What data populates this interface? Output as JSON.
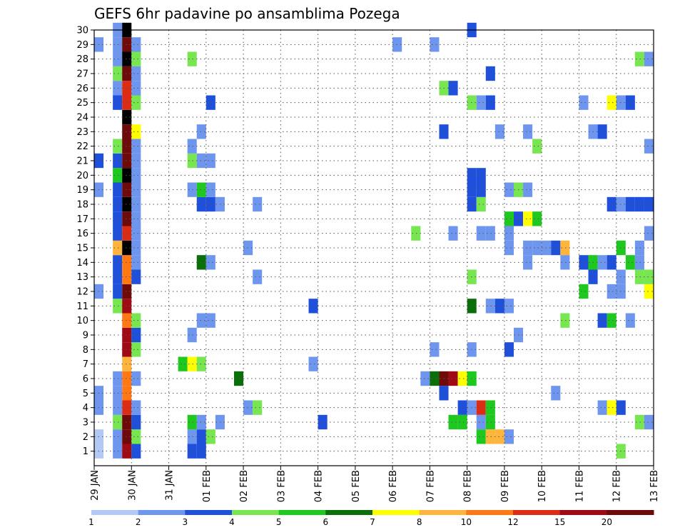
{
  "chart_data": {
    "type": "heatmap",
    "title": "GEFS 6hr padavine po ansamblima Pozega",
    "xlabel": "",
    "ylabel": "",
    "x_ticks": [
      "29 JAN",
      "30 JAN",
      "31 JAN",
      "01 FEB",
      "02 FEB",
      "03 FEB",
      "04 FEB",
      "05 FEB",
      "06 FEB",
      "07 FEB",
      "08 FEB",
      "09 FEB",
      "10 FEB",
      "11 FEB",
      "12 FEB",
      "13 FEB"
    ],
    "y_ticks": [
      "1",
      "2",
      "3",
      "4",
      "5",
      "6",
      "7",
      "8",
      "9",
      "10",
      "11",
      "12",
      "13",
      "14",
      "15",
      "16",
      "17",
      "18",
      "19",
      "20",
      "21",
      "22",
      "23",
      "24",
      "25",
      "26",
      "27",
      "28",
      "29",
      "30"
    ],
    "xlim": [
      0,
      15
    ],
    "ylim": [
      0,
      30
    ],
    "grid": true,
    "colorbar": {
      "labels": [
        "1",
        "2",
        "3",
        "4",
        "5",
        "6",
        "7",
        "8",
        "10",
        "12",
        "15",
        "20"
      ],
      "colors": [
        "#b4c8f5",
        "#6e96ee",
        "#1e50dc",
        "#78e650",
        "#1ec81e",
        "#0a6e0a",
        "#ffff00",
        "#ffb43c",
        "#ff7814",
        "#dc2d14",
        "#a00a14",
        "#6e0a0a"
      ]
    },
    "cells": [
      {
        "t": 0.0,
        "m": 1,
        "v": 0
      },
      {
        "t": 0.0,
        "m": 2,
        "v": 0
      },
      {
        "t": 0.0,
        "m": 4,
        "v": 1
      },
      {
        "t": 0.0,
        "m": 5,
        "v": 1
      },
      {
        "t": 0.0,
        "m": 12,
        "v": 1
      },
      {
        "t": 0.0,
        "m": 19,
        "v": 1
      },
      {
        "t": 0.0,
        "m": 21,
        "v": 2
      },
      {
        "t": 0.0,
        "m": 29,
        "v": 1
      },
      {
        "t": 0.5,
        "m": 1,
        "v": 1
      },
      {
        "t": 0.5,
        "m": 2,
        "v": 1
      },
      {
        "t": 0.5,
        "m": 3,
        "v": 3
      },
      {
        "t": 0.5,
        "m": 4,
        "v": 1
      },
      {
        "t": 0.5,
        "m": 5,
        "v": 1
      },
      {
        "t": 0.5,
        "m": 6,
        "v": 1
      },
      {
        "t": 0.5,
        "m": 11,
        "v": 3
      },
      {
        "t": 0.5,
        "m": 12,
        "v": 2
      },
      {
        "t": 0.5,
        "m": 13,
        "v": 2
      },
      {
        "t": 0.5,
        "m": 14,
        "v": 2
      },
      {
        "t": 0.5,
        "m": 15,
        "v": 7
      },
      {
        "t": 0.5,
        "m": 16,
        "v": 2
      },
      {
        "t": 0.5,
        "m": 17,
        "v": 2
      },
      {
        "t": 0.5,
        "m": 18,
        "v": 2
      },
      {
        "t": 0.5,
        "m": 19,
        "v": 2
      },
      {
        "t": 0.5,
        "m": 20,
        "v": 4
      },
      {
        "t": 0.5,
        "m": 21,
        "v": 2
      },
      {
        "t": 0.5,
        "m": 22,
        "v": 3
      },
      {
        "t": 0.5,
        "m": 25,
        "v": 2
      },
      {
        "t": 0.5,
        "m": 26,
        "v": 1
      },
      {
        "t": 0.5,
        "m": 27,
        "v": 3
      },
      {
        "t": 0.5,
        "m": 28,
        "v": 1
      },
      {
        "t": 0.5,
        "m": 29,
        "v": 1
      },
      {
        "t": 0.5,
        "m": 30,
        "v": 1
      },
      {
        "t": 0.75,
        "m": 1,
        "v": 10
      },
      {
        "t": 0.75,
        "m": 2,
        "v": 11
      },
      {
        "t": 0.75,
        "m": 3,
        "v": 11
      },
      {
        "t": 0.75,
        "m": 4,
        "v": 9
      },
      {
        "t": 0.75,
        "m": 5,
        "v": 8
      },
      {
        "t": 0.75,
        "m": 6,
        "v": 8
      },
      {
        "t": 0.75,
        "m": 7,
        "v": 7
      },
      {
        "t": 0.75,
        "m": 8,
        "v": 10
      },
      {
        "t": 0.75,
        "m": 9,
        "v": 10
      },
      {
        "t": 0.75,
        "m": 10,
        "v": 8
      },
      {
        "t": 0.75,
        "m": 11,
        "v": 10
      },
      {
        "t": 0.75,
        "m": 12,
        "v": 11
      },
      {
        "t": 0.75,
        "m": 13,
        "v": 8
      },
      {
        "t": 0.75,
        "m": 14,
        "v": 8
      },
      {
        "t": 0.75,
        "m": 15,
        "v": 12
      },
      {
        "t": 0.75,
        "m": 16,
        "v": 9
      },
      {
        "t": 0.75,
        "m": 17,
        "v": 11
      },
      {
        "t": 0.75,
        "m": 18,
        "v": 12
      },
      {
        "t": 0.75,
        "m": 19,
        "v": 11
      },
      {
        "t": 0.75,
        "m": 20,
        "v": 12
      },
      {
        "t": 0.75,
        "m": 21,
        "v": 11
      },
      {
        "t": 0.75,
        "m": 22,
        "v": 11
      },
      {
        "t": 0.75,
        "m": 23,
        "v": 11
      },
      {
        "t": 0.75,
        "m": 24,
        "v": 12
      },
      {
        "t": 0.75,
        "m": 25,
        "v": 9
      },
      {
        "t": 0.75,
        "m": 26,
        "v": 9
      },
      {
        "t": 0.75,
        "m": 27,
        "v": 11
      },
      {
        "t": 0.75,
        "m": 28,
        "v": 12
      },
      {
        "t": 0.75,
        "m": 29,
        "v": 11
      },
      {
        "t": 0.75,
        "m": 30,
        "v": 12
      },
      {
        "t": 1.0,
        "m": 1,
        "v": 2
      },
      {
        "t": 1.0,
        "m": 2,
        "v": 3
      },
      {
        "t": 1.0,
        "m": 3,
        "v": 2
      },
      {
        "t": 1.0,
        "m": 4,
        "v": 1
      },
      {
        "t": 1.0,
        "m": 6,
        "v": 1
      },
      {
        "t": 1.0,
        "m": 8,
        "v": 3
      },
      {
        "t": 1.0,
        "m": 9,
        "v": 2
      },
      {
        "t": 1.0,
        "m": 10,
        "v": 3
      },
      {
        "t": 1.0,
        "m": 13,
        "v": 2
      },
      {
        "t": 1.0,
        "m": 14,
        "v": 1
      },
      {
        "t": 1.0,
        "m": 15,
        "v": 1
      },
      {
        "t": 1.0,
        "m": 16,
        "v": 1
      },
      {
        "t": 1.0,
        "m": 17,
        "v": 1
      },
      {
        "t": 1.0,
        "m": 18,
        "v": 1
      },
      {
        "t": 1.0,
        "m": 19,
        "v": 1
      },
      {
        "t": 1.0,
        "m": 20,
        "v": 1
      },
      {
        "t": 1.0,
        "m": 21,
        "v": 1
      },
      {
        "t": 1.0,
        "m": 22,
        "v": 1
      },
      {
        "t": 1.0,
        "m": 23,
        "v": 6
      },
      {
        "t": 1.0,
        "m": 25,
        "v": 3
      },
      {
        "t": 1.0,
        "m": 26,
        "v": 1
      },
      {
        "t": 1.0,
        "m": 27,
        "v": 1
      },
      {
        "t": 1.0,
        "m": 28,
        "v": 3
      },
      {
        "t": 1.0,
        "m": 29,
        "v": 1
      },
      {
        "t": 2.5,
        "m": 1,
        "v": 2
      },
      {
        "t": 2.5,
        "m": 2,
        "v": 1
      },
      {
        "t": 2.5,
        "m": 3,
        "v": 4
      },
      {
        "t": 2.5,
        "m": 9,
        "v": 1
      },
      {
        "t": 2.5,
        "m": 19,
        "v": 1
      },
      {
        "t": 2.5,
        "m": 21,
        "v": 3
      },
      {
        "t": 2.5,
        "m": 22,
        "v": 1
      },
      {
        "t": 2.5,
        "m": 28,
        "v": 3
      },
      {
        "t": 2.25,
        "m": 7,
        "v": 4
      },
      {
        "t": 2.5,
        "m": 7,
        "v": 6
      },
      {
        "t": 2.75,
        "m": 1,
        "v": 2
      },
      {
        "t": 2.75,
        "m": 2,
        "v": 2
      },
      {
        "t": 2.75,
        "m": 3,
        "v": 1
      },
      {
        "t": 2.75,
        "m": 7,
        "v": 3
      },
      {
        "t": 2.75,
        "m": 10,
        "v": 1
      },
      {
        "t": 2.75,
        "m": 14,
        "v": 5
      },
      {
        "t": 2.75,
        "m": 18,
        "v": 2
      },
      {
        "t": 2.75,
        "m": 19,
        "v": 4
      },
      {
        "t": 2.75,
        "m": 21,
        "v": 1
      },
      {
        "t": 2.75,
        "m": 23,
        "v": 1
      },
      {
        "t": 3.0,
        "m": 2,
        "v": 3
      },
      {
        "t": 3.0,
        "m": 10,
        "v": 1
      },
      {
        "t": 3.0,
        "m": 14,
        "v": 1
      },
      {
        "t": 3.0,
        "m": 18,
        "v": 2
      },
      {
        "t": 3.0,
        "m": 19,
        "v": 1
      },
      {
        "t": 3.0,
        "m": 21,
        "v": 1
      },
      {
        "t": 3.0,
        "m": 25,
        "v": 2
      },
      {
        "t": 3.25,
        "m": 3,
        "v": 1
      },
      {
        "t": 3.25,
        "m": 18,
        "v": 1
      },
      {
        "t": 3.75,
        "m": 6,
        "v": 5
      },
      {
        "t": 4.0,
        "m": 4,
        "v": 1
      },
      {
        "t": 4.0,
        "m": 15,
        "v": 1
      },
      {
        "t": 4.25,
        "m": 4,
        "v": 3
      },
      {
        "t": 4.25,
        "m": 13,
        "v": 1
      },
      {
        "t": 4.25,
        "m": 18,
        "v": 1
      },
      {
        "t": 5.75,
        "m": 7,
        "v": 1
      },
      {
        "t": 5.75,
        "m": 11,
        "v": 2
      },
      {
        "t": 6.0,
        "m": 3,
        "v": 2
      },
      {
        "t": 8.0,
        "m": 29,
        "v": 1
      },
      {
        "t": 8.5,
        "m": 16,
        "v": 3
      },
      {
        "t": 8.75,
        "m": 6,
        "v": 1
      },
      {
        "t": 9.0,
        "m": 6,
        "v": 5
      },
      {
        "t": 9.0,
        "m": 8,
        "v": 1
      },
      {
        "t": 9.0,
        "m": 29,
        "v": 1
      },
      {
        "t": 9.25,
        "m": 5,
        "v": 2
      },
      {
        "t": 9.25,
        "m": 6,
        "v": 11
      },
      {
        "t": 9.25,
        "m": 23,
        "v": 2
      },
      {
        "t": 9.25,
        "m": 26,
        "v": 3
      },
      {
        "t": 9.5,
        "m": 3,
        "v": 4
      },
      {
        "t": 9.5,
        "m": 6,
        "v": 10
      },
      {
        "t": 9.5,
        "m": 16,
        "v": 1
      },
      {
        "t": 9.5,
        "m": 26,
        "v": 2
      },
      {
        "t": 9.75,
        "m": 3,
        "v": 4
      },
      {
        "t": 9.75,
        "m": 4,
        "v": 2
      },
      {
        "t": 9.75,
        "m": 6,
        "v": 6
      },
      {
        "t": 10.0,
        "m": 4,
        "v": 1
      },
      {
        "t": 10.0,
        "m": 6,
        "v": 4
      },
      {
        "t": 10.0,
        "m": 8,
        "v": 1
      },
      {
        "t": 10.0,
        "m": 11,
        "v": 5
      },
      {
        "t": 10.0,
        "m": 13,
        "v": 3
      },
      {
        "t": 10.0,
        "m": 18,
        "v": 2
      },
      {
        "t": 10.0,
        "m": 19,
        "v": 2
      },
      {
        "t": 10.0,
        "m": 20,
        "v": 2
      },
      {
        "t": 10.0,
        "m": 25,
        "v": 3
      },
      {
        "t": 10.0,
        "m": 30,
        "v": 2
      },
      {
        "t": 10.25,
        "m": 2,
        "v": 4
      },
      {
        "t": 10.25,
        "m": 3,
        "v": 1
      },
      {
        "t": 10.25,
        "m": 4,
        "v": 9
      },
      {
        "t": 10.25,
        "m": 16,
        "v": 1
      },
      {
        "t": 10.25,
        "m": 18,
        "v": 3
      },
      {
        "t": 10.25,
        "m": 19,
        "v": 2
      },
      {
        "t": 10.25,
        "m": 20,
        "v": 2
      },
      {
        "t": 10.25,
        "m": 25,
        "v": 1
      },
      {
        "t": 10.5,
        "m": 2,
        "v": 7
      },
      {
        "t": 10.5,
        "m": 3,
        "v": 4
      },
      {
        "t": 10.5,
        "m": 4,
        "v": 4
      },
      {
        "t": 10.5,
        "m": 11,
        "v": 1
      },
      {
        "t": 10.5,
        "m": 16,
        "v": 1
      },
      {
        "t": 10.5,
        "m": 25,
        "v": 2
      },
      {
        "t": 10.5,
        "m": 27,
        "v": 2
      },
      {
        "t": 10.75,
        "m": 2,
        "v": 7
      },
      {
        "t": 10.75,
        "m": 11,
        "v": 2
      },
      {
        "t": 10.75,
        "m": 23,
        "v": 1
      },
      {
        "t": 11.0,
        "m": 2,
        "v": 1
      },
      {
        "t": 11.0,
        "m": 8,
        "v": 2
      },
      {
        "t": 11.0,
        "m": 11,
        "v": 1
      },
      {
        "t": 11.0,
        "m": 15,
        "v": 1
      },
      {
        "t": 11.0,
        "m": 16,
        "v": 1
      },
      {
        "t": 11.0,
        "m": 17,
        "v": 4
      },
      {
        "t": 11.0,
        "m": 19,
        "v": 1
      },
      {
        "t": 11.25,
        "m": 9,
        "v": 1
      },
      {
        "t": 11.25,
        "m": 17,
        "v": 2
      },
      {
        "t": 11.25,
        "m": 19,
        "v": 3
      },
      {
        "t": 11.5,
        "m": 14,
        "v": 1
      },
      {
        "t": 11.5,
        "m": 15,
        "v": 1
      },
      {
        "t": 11.5,
        "m": 17,
        "v": 6
      },
      {
        "t": 11.5,
        "m": 19,
        "v": 1
      },
      {
        "t": 11.5,
        "m": 23,
        "v": 1
      },
      {
        "t": 11.75,
        "m": 15,
        "v": 1
      },
      {
        "t": 11.75,
        "m": 17,
        "v": 4
      },
      {
        "t": 11.75,
        "m": 22,
        "v": 3
      },
      {
        "t": 12.0,
        "m": 15,
        "v": 1
      },
      {
        "t": 12.25,
        "m": 15,
        "v": 2
      },
      {
        "t": 12.5,
        "m": 10,
        "v": 3
      },
      {
        "t": 12.5,
        "m": 15,
        "v": 7
      },
      {
        "t": 12.25,
        "m": 5,
        "v": 1
      },
      {
        "t": 12.5,
        "m": 14,
        "v": 1
      },
      {
        "t": 13.0,
        "m": 12,
        "v": 4
      },
      {
        "t": 13.0,
        "m": 14,
        "v": 2
      },
      {
        "t": 13.0,
        "m": 25,
        "v": 1
      },
      {
        "t": 13.25,
        "m": 13,
        "v": 2
      },
      {
        "t": 13.25,
        "m": 14,
        "v": 4
      },
      {
        "t": 13.25,
        "m": 23,
        "v": 1
      },
      {
        "t": 13.5,
        "m": 4,
        "v": 1
      },
      {
        "t": 13.5,
        "m": 10,
        "v": 2
      },
      {
        "t": 13.5,
        "m": 14,
        "v": 1
      },
      {
        "t": 13.5,
        "m": 23,
        "v": 2
      },
      {
        "t": 13.75,
        "m": 10,
        "v": 4
      },
      {
        "t": 13.75,
        "m": 12,
        "v": 1
      },
      {
        "t": 13.75,
        "m": 14,
        "v": 2
      },
      {
        "t": 13.75,
        "m": 18,
        "v": 2
      },
      {
        "t": 13.75,
        "m": 25,
        "v": 6
      },
      {
        "t": 13.75,
        "m": 4,
        "v": 6
      },
      {
        "t": 14.0,
        "m": 1,
        "v": 3
      },
      {
        "t": 14.0,
        "m": 4,
        "v": 2
      },
      {
        "t": 14.0,
        "m": 12,
        "v": 1
      },
      {
        "t": 14.0,
        "m": 13,
        "v": 1
      },
      {
        "t": 14.0,
        "m": 15,
        "v": 4
      },
      {
        "t": 14.0,
        "m": 18,
        "v": 1
      },
      {
        "t": 14.0,
        "m": 25,
        "v": 1
      },
      {
        "t": 14.25,
        "m": 10,
        "v": 1
      },
      {
        "t": 14.25,
        "m": 14,
        "v": 4
      },
      {
        "t": 14.25,
        "m": 18,
        "v": 2
      },
      {
        "t": 14.25,
        "m": 25,
        "v": 2
      },
      {
        "t": 14.5,
        "m": 3,
        "v": 3
      },
      {
        "t": 14.5,
        "m": 13,
        "v": 3
      },
      {
        "t": 14.5,
        "m": 14,
        "v": 1
      },
      {
        "t": 14.5,
        "m": 15,
        "v": 1
      },
      {
        "t": 14.5,
        "m": 18,
        "v": 2
      },
      {
        "t": 14.5,
        "m": 28,
        "v": 3
      },
      {
        "t": 14.75,
        "m": 3,
        "v": 1
      },
      {
        "t": 14.75,
        "m": 12,
        "v": 6
      },
      {
        "t": 14.75,
        "m": 13,
        "v": 3
      },
      {
        "t": 14.75,
        "m": 16,
        "v": 1
      },
      {
        "t": 14.75,
        "m": 18,
        "v": 2
      },
      {
        "t": 14.75,
        "m": 22,
        "v": 1
      },
      {
        "t": 14.75,
        "m": 28,
        "v": 1
      }
    ]
  }
}
